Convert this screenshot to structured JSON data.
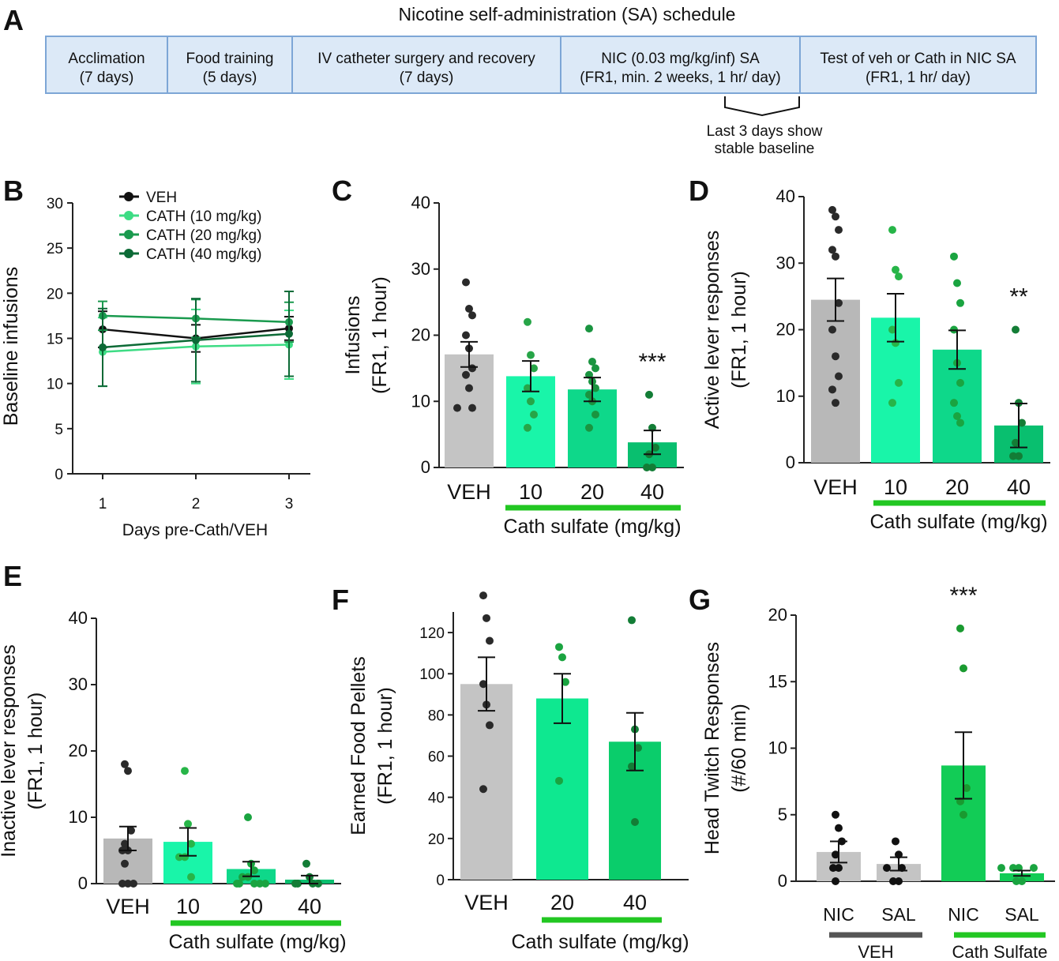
{
  "figure": {
    "schedule": {
      "panel_letter": "A",
      "title": "Nicotine self-administration (SA) schedule",
      "boxes": [
        {
          "line1": "Acclimation",
          "line2": "(7 days)"
        },
        {
          "line1": "Food training",
          "line2": "(5 days)"
        },
        {
          "line1": "IV catheter surgery and recovery",
          "line2": "(7 days)"
        },
        {
          "line1": "NIC (0.03 mg/kg/inf) SA",
          "line2": "(FR1, min. 2 weeks, 1 hr/ day)"
        },
        {
          "line1": "Test of veh or Cath in NIC SA",
          "line2": "(FR1, 1 hr/ day)"
        }
      ],
      "note_line1": "Last 3 days show",
      "note_line2": "stable baseline",
      "box_fill": "#dce9f7",
      "box_stroke": "#7da6d6"
    }
  },
  "chart_data": [
    {
      "panel": "B",
      "type": "line",
      "xlabel": "Days pre-Cath/VEH",
      "ylabel": "Baseline infusions",
      "x": [
        1,
        2,
        3
      ],
      "xticks": [
        "1",
        "2",
        "3"
      ],
      "ylim": [
        0,
        30
      ],
      "yticks": [
        "0",
        "5",
        "10",
        "15",
        "20",
        "25",
        "30"
      ],
      "legend_position": "top-left",
      "series": [
        {
          "name": "VEH",
          "color": "#111111",
          "values": [
            16,
            15,
            16.1
          ],
          "err": [
            2,
            1.5,
            1.3
          ]
        },
        {
          "name": "CATH (10 mg/kg)",
          "color": "#3ddc84",
          "values": [
            13.5,
            14.1,
            14.3
          ],
          "err": [
            3.8,
            4.1,
            3.8
          ]
        },
        {
          "name": "CATH (20 mg/kg)",
          "color": "#1a9a4e",
          "values": [
            17.5,
            17.2,
            16.8
          ],
          "err": [
            1.6,
            2.1,
            2.2
          ]
        },
        {
          "name": "CATH (40 mg/kg)",
          "color": "#0c6a36",
          "values": [
            14,
            14.8,
            15.5
          ],
          "err": [
            4.3,
            4.6,
            4.7
          ]
        }
      ]
    },
    {
      "panel": "C",
      "type": "bar",
      "ylabel_line1": "Infusions",
      "ylabel_line2": "(FR1, 1 hour)",
      "xlabel": "Cath sulfate (mg/kg)",
      "categories": [
        "VEH",
        "10",
        "20",
        "40"
      ],
      "values": [
        17.1,
        13.8,
        11.8,
        3.8
      ],
      "err": [
        1.9,
        2.3,
        1.8,
        1.8
      ],
      "ylim": [
        0,
        40
      ],
      "yticks": [
        "0",
        "10",
        "20",
        "30",
        "40"
      ],
      "colors": [
        "#c4c4c4",
        "#19f5a9",
        "#0ed88a",
        "#09bf6f"
      ],
      "dot_colors": [
        "#2a2a2a",
        "#27a548",
        "#1a9440",
        "#137d36"
      ],
      "points": [
        [
          28,
          24,
          23,
          20,
          18,
          15,
          14,
          12,
          9,
          9
        ],
        [
          22,
          17,
          15,
          12,
          10,
          8,
          6
        ],
        [
          21,
          16,
          15,
          14,
          13,
          12,
          11,
          10,
          8,
          6
        ],
        [
          11,
          6,
          3,
          2,
          0,
          0
        ]
      ],
      "significance": [
        {
          "index": 3,
          "label": "***"
        }
      ],
      "bracket_color": "#22c722"
    },
    {
      "panel": "D",
      "type": "bar",
      "ylabel_line1": "Active lever responses",
      "ylabel_line2": "(FR1, 1 hour)",
      "xlabel": "Cath sulfate (mg/kg)",
      "categories": [
        "VEH",
        "10",
        "20",
        "40"
      ],
      "values": [
        24.5,
        21.8,
        17,
        5.6
      ],
      "err": [
        3.2,
        3.6,
        2.9,
        3.3
      ],
      "ylim": [
        0,
        40
      ],
      "yticks": [
        "0",
        "10",
        "20",
        "30",
        "40"
      ],
      "colors": [
        "#b8b8b8",
        "#19f5a9",
        "#0ed88a",
        "#09bf6f"
      ],
      "dot_colors": [
        "#2a2a2a",
        "#27b548",
        "#1aa440",
        "#137d36"
      ],
      "points": [
        [
          38,
          37,
          35,
          32,
          31,
          24,
          20,
          16,
          13,
          11,
          9
        ],
        [
          35,
          29,
          28,
          20,
          18,
          12,
          9
        ],
        [
          31,
          27,
          24,
          20,
          15,
          12,
          9,
          7,
          6
        ],
        [
          20,
          9,
          6,
          3,
          1,
          1
        ]
      ],
      "significance": [
        {
          "index": 3,
          "label": "**"
        }
      ],
      "bracket_color": "#22c722"
    },
    {
      "panel": "E",
      "type": "bar",
      "ylabel_line1": "Inactive lever responses",
      "ylabel_line2": "(FR1, 1 hour)",
      "xlabel": "Cath sulfate (mg/kg)",
      "categories": [
        "VEH",
        "10",
        "20",
        "40"
      ],
      "values": [
        6.8,
        6.3,
        2.2,
        0.6
      ],
      "err": [
        1.8,
        2.1,
        1.1,
        0.6
      ],
      "ylim": [
        0,
        40
      ],
      "yticks": [
        "0",
        "10",
        "20",
        "30",
        "40"
      ],
      "colors": [
        "#b8b8b8",
        "#19f5a9",
        "#0ed88a",
        "#09bf6f"
      ],
      "dot_colors": [
        "#2a2a2a",
        "#27b548",
        "#1aa440",
        "#137d36"
      ],
      "points": [
        [
          18,
          17,
          8,
          6,
          5,
          5,
          3,
          0,
          0,
          0
        ],
        [
          17,
          9,
          6,
          4,
          4,
          1
        ],
        [
          10,
          3,
          2,
          1,
          1,
          0,
          0,
          0,
          0,
          0
        ],
        [
          3,
          1,
          0,
          0,
          0,
          0
        ]
      ],
      "significance": [],
      "bracket_color": "#22c722"
    },
    {
      "panel": "F",
      "type": "bar",
      "ylabel_line1": "Earned Food Pellets",
      "ylabel_line2": "(FR1, 1 hour)",
      "xlabel": "Cath sulfate (mg/kg)",
      "categories": [
        "VEH",
        "20",
        "40"
      ],
      "values": [
        95,
        88,
        67
      ],
      "err": [
        13,
        12,
        14
      ],
      "ylim": [
        0,
        130
      ],
      "yticks": [
        "0",
        "20",
        "40",
        "60",
        "80",
        "100",
        "120"
      ],
      "colors": [
        "#c4c4c4",
        "#0ee890",
        "#0acd6b"
      ],
      "dot_colors": [
        "#2a2a2a",
        "#1aa440",
        "#137d36"
      ],
      "points": [
        [
          138,
          127,
          116,
          95,
          85,
          75,
          44
        ],
        [
          113,
          108,
          96,
          48
        ],
        [
          126,
          73,
          64,
          55,
          28
        ]
      ],
      "significance": [],
      "bracket_color": "#22c722"
    },
    {
      "panel": "G",
      "type": "bar",
      "ylabel_line1": "Head Twitch Responses",
      "ylabel_line2": "(#/60 min)",
      "categories": [
        "NIC",
        "SAL",
        "NIC",
        "SAL"
      ],
      "values": [
        2.2,
        1.3,
        8.7,
        0.6
      ],
      "err": [
        0.8,
        0.5,
        2.5,
        0.2
      ],
      "ylim": [
        0,
        20
      ],
      "yticks": [
        "0",
        "5",
        "10",
        "15",
        "20"
      ],
      "colors": [
        "#c4c4c4",
        "#c4c4c4",
        "#12cc56",
        "#12cc56"
      ],
      "dot_colors": [
        "#111111",
        "#111111",
        "#1a9a30",
        "#1aa440"
      ],
      "points": [
        [
          5,
          4,
          3,
          2,
          1,
          1,
          0
        ],
        [
          3,
          2,
          1,
          1,
          0,
          0
        ],
        [
          19,
          16,
          7,
          6,
          5
        ],
        [
          1,
          1,
          1,
          1,
          0,
          0
        ]
      ],
      "significance": [
        {
          "index": 2,
          "label": "***"
        }
      ],
      "groups": [
        {
          "label": "VEH",
          "from": 0,
          "to": 1,
          "color": "#555555"
        },
        {
          "label": "Cath Sulfate",
          "from": 2,
          "to": 3,
          "color": "#22c722"
        }
      ]
    }
  ]
}
